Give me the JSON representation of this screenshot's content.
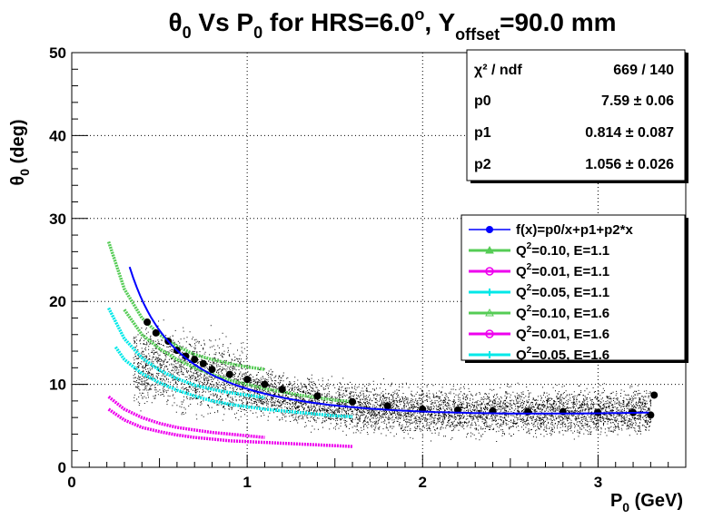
{
  "chart_data": {
    "type": "scatter",
    "title": {
      "theta": "θ",
      "theta_sub": "0",
      "vs_p": " Vs P",
      "p_sub": "0",
      "hrs": " for HRS=6.0",
      "deg": "o",
      "y": ", Y",
      "y_sub": "offset",
      "yval": "=90.0 mm"
    },
    "xlabel": {
      "p": "P",
      "sub": "0",
      "unit": " (GeV)"
    },
    "ylabel": {
      "theta": "θ",
      "sub": "0",
      "unit": " (deg)"
    },
    "xlim": [
      0,
      3.5
    ],
    "ylim": [
      0,
      50
    ],
    "x_ticks": [
      "0",
      "1",
      "2",
      "3"
    ],
    "y_ticks": [
      "0",
      "10",
      "20",
      "30",
      "40",
      "50"
    ],
    "grid": true,
    "stats": {
      "rows": [
        {
          "label": "χ² / ndf",
          "value": "669 / 140"
        },
        {
          "label": "p0",
          "value": "7.59 ± 0.06"
        },
        {
          "label": "p1",
          "value": "0.814 ± 0.087"
        },
        {
          "label": "p2",
          "value": "1.056 ± 0.026"
        }
      ]
    },
    "legend": {
      "placement": "right",
      "entries": [
        {
          "text": "f(x)=p0/x+p1+p2*x",
          "color": "#0000ff",
          "marker": "dot"
        },
        {
          "text": "Q",
          "sup": "2",
          "rest": "=0.10, E=1.1",
          "color": "#55cc55",
          "marker": "triangle"
        },
        {
          "text": "Q",
          "sup": "2",
          "rest": "=0.01, E=1.1",
          "color": "#ee00ee",
          "marker": "circle"
        },
        {
          "text": "Q",
          "sup": "2",
          "rest": "=0.05, E=1.1",
          "color": "#00e8e8",
          "marker": "cross"
        },
        {
          "text": "Q",
          "sup": "2",
          "rest": "=0.10, E=1.6",
          "color": "#55cc55",
          "marker": "triangle-open"
        },
        {
          "text": "Q",
          "sup": "2",
          "rest": "=0.01, E=1.6",
          "color": "#ee00ee",
          "marker": "circle-open"
        },
        {
          "text": "Q",
          "sup": "2",
          "rest": "=0.05, E=1.6",
          "color": "#00e8e8",
          "marker": "cross-open"
        }
      ]
    },
    "fit": {
      "p0": 7.59,
      "p1": 0.814,
      "p2": 1.056,
      "color": "#0000ff",
      "x_range": [
        0.33,
        3.3
      ]
    },
    "series": [
      {
        "name": "Q²=0.10, E=1.1",
        "color": "#55cc55",
        "x": [
          0.21,
          0.3,
          0.4,
          0.5,
          0.6,
          0.7,
          0.8,
          0.9,
          1.0,
          1.1
        ],
        "y": [
          27.2,
          21.5,
          18.0,
          16.0,
          14.6,
          13.6,
          13.0,
          12.5,
          12.1,
          11.8
        ]
      },
      {
        "name": "Q²=0.01, E=1.1",
        "color": "#ee00ee",
        "x": [
          0.21,
          0.3,
          0.4,
          0.5,
          0.6,
          0.7,
          0.8,
          0.9,
          1.0,
          1.1
        ],
        "y": [
          8.5,
          7.0,
          6.0,
          5.3,
          4.8,
          4.5,
          4.2,
          4.0,
          3.8,
          3.6
        ]
      },
      {
        "name": "Q²=0.05, E=1.1",
        "color": "#00e8e8",
        "x": [
          0.21,
          0.3,
          0.4,
          0.5,
          0.6,
          0.7,
          0.8,
          0.9,
          1.0,
          1.1
        ],
        "y": [
          19.2,
          15.5,
          13.2,
          11.7,
          10.7,
          9.9,
          9.4,
          9.0,
          8.7,
          8.4
        ]
      },
      {
        "name": "Q²=0.10, E=1.6",
        "color": "#55cc55",
        "x": [
          0.3,
          0.4,
          0.5,
          0.6,
          0.7,
          0.8,
          0.9,
          1.0,
          1.1,
          1.2,
          1.3,
          1.4,
          1.5,
          1.6
        ],
        "y": [
          19.0,
          16.0,
          14.3,
          13.0,
          12.0,
          11.2,
          10.5,
          10.0,
          9.5,
          9.1,
          8.7,
          8.4,
          8.1,
          7.9
        ]
      },
      {
        "name": "Q²=0.01, E=1.6",
        "color": "#ee00ee",
        "x": [
          0.21,
          0.3,
          0.4,
          0.5,
          0.6,
          0.7,
          0.8,
          0.9,
          1.0,
          1.1,
          1.2,
          1.3,
          1.4,
          1.5,
          1.6
        ],
        "y": [
          7.0,
          5.7,
          4.8,
          4.3,
          3.9,
          3.6,
          3.4,
          3.2,
          3.1,
          3.0,
          2.9,
          2.8,
          2.7,
          2.6,
          2.5
        ]
      },
      {
        "name": "Q²=0.05, E=1.6",
        "color": "#00e8e8",
        "x": [
          0.25,
          0.3,
          0.4,
          0.5,
          0.6,
          0.7,
          0.8,
          0.9,
          1.0,
          1.1,
          1.2,
          1.3,
          1.4,
          1.5,
          1.6
        ],
        "y": [
          14.5,
          13.0,
          11.3,
          10.2,
          9.3,
          8.6,
          8.0,
          7.6,
          7.3,
          7.0,
          6.8,
          6.6,
          6.4,
          6.2,
          6.1
        ]
      },
      {
        "name": "data",
        "color": "#000000",
        "x": [
          0.43,
          0.48,
          0.55,
          0.6,
          0.65,
          0.7,
          0.75,
          0.8,
          0.9,
          1.0,
          1.1,
          1.2,
          1.4,
          1.6,
          1.8,
          2.0,
          2.2,
          2.4,
          2.6,
          2.8,
          3.0,
          3.2,
          3.3,
          3.32
        ],
        "y": [
          17.5,
          16.2,
          15.2,
          14.1,
          13.4,
          13.0,
          12.5,
          11.8,
          11.2,
          10.6,
          10.0,
          9.4,
          8.6,
          7.9,
          7.4,
          7.0,
          6.9,
          6.8,
          6.7,
          6.7,
          6.6,
          6.6,
          6.3,
          8.7
        ]
      }
    ],
    "scatter_cloud": {
      "color": "#000000",
      "x_range": [
        0.35,
        3.3
      ]
    }
  }
}
